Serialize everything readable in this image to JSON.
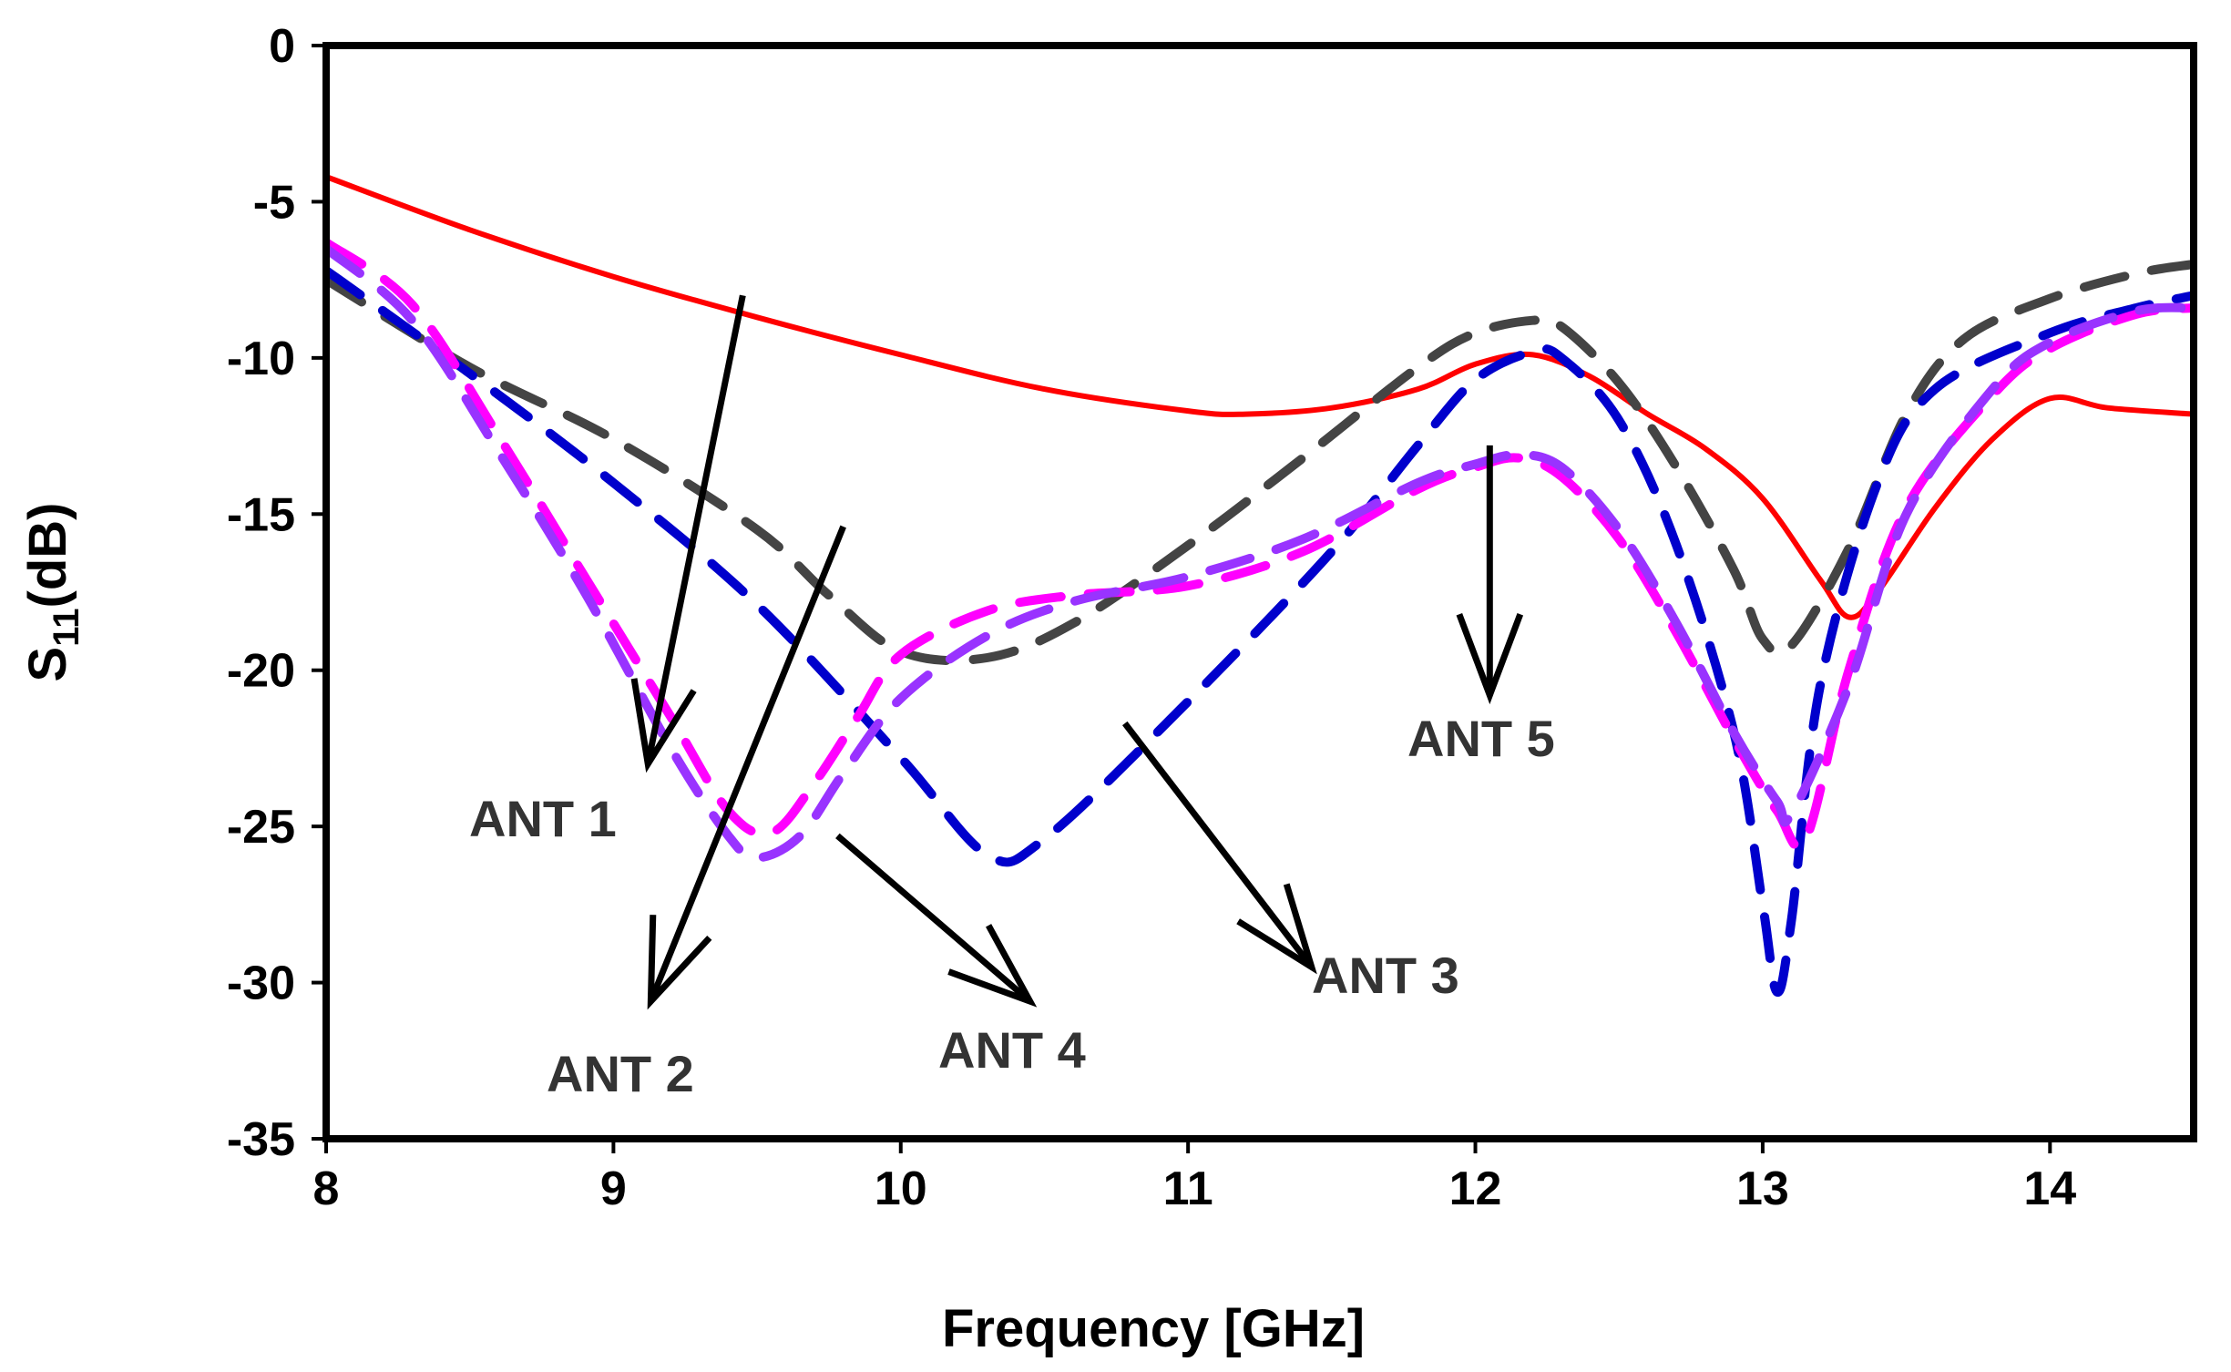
{
  "chart_data": {
    "type": "line",
    "title": "",
    "xlabel": "Frequency [GHz]",
    "ylabel": {
      "main": "S",
      "sub": "11",
      "unit": "(dB)"
    },
    "xlim": [
      8,
      14.5
    ],
    "ylim": [
      -35,
      0
    ],
    "xticks": [
      "8",
      "9",
      "10",
      "11",
      "12",
      "13",
      "14"
    ],
    "yticks": [
      "0",
      "-5",
      "-10",
      "-15",
      "-20",
      "-25",
      "-30",
      "-35"
    ],
    "grid": false,
    "legend": "none (annotated with arrows)",
    "series": [
      {
        "name": "ANT 1",
        "color": "#ff0000",
        "style": "solid",
        "x": [
          8.0,
          8.5,
          9.0,
          9.5,
          10.0,
          10.5,
          11.0,
          11.2,
          11.5,
          11.8,
          12.0,
          12.2,
          12.4,
          12.6,
          12.8,
          13.0,
          13.2,
          13.3,
          13.4,
          13.6,
          13.8,
          14.0,
          14.2,
          14.5
        ],
        "y": [
          -4.2,
          -5.9,
          -7.4,
          -8.7,
          -9.9,
          -11.0,
          -11.7,
          -11.8,
          -11.6,
          -11.0,
          -10.2,
          -9.9,
          -10.6,
          -11.8,
          -12.9,
          -14.5,
          -17.1,
          -18.3,
          -17.5,
          -14.8,
          -12.6,
          -11.3,
          -11.6,
          -11.8
        ]
      },
      {
        "name": "ANT 2",
        "color": "#444444",
        "style": "dash",
        "x": [
          8.0,
          8.5,
          9.0,
          9.5,
          9.75,
          10.0,
          10.3,
          10.6,
          11.0,
          11.4,
          11.8,
          12.0,
          12.2,
          12.3,
          12.5,
          12.7,
          12.9,
          13.0,
          13.1,
          13.3,
          13.5,
          13.7,
          14.0,
          14.3,
          14.5
        ],
        "y": [
          -7.5,
          -10.3,
          -12.6,
          -15.5,
          -17.6,
          -19.4,
          -19.6,
          -18.5,
          -16.0,
          -13.2,
          -10.3,
          -9.2,
          -8.8,
          -9.0,
          -10.8,
          -13.5,
          -16.8,
          -19.0,
          -19.2,
          -16.1,
          -11.8,
          -9.4,
          -8.1,
          -7.3,
          -7.0
        ]
      },
      {
        "name": "ANT 3",
        "color": "#0000cc",
        "style": "dash",
        "x": [
          8.0,
          8.5,
          9.0,
          9.5,
          10.0,
          10.3,
          10.5,
          11.0,
          11.5,
          11.8,
          12.0,
          12.2,
          12.3,
          12.5,
          12.7,
          12.9,
          13.0,
          13.05,
          13.1,
          13.2,
          13.4,
          13.6,
          14.0,
          14.3,
          14.5
        ],
        "y": [
          -7.2,
          -10.5,
          -14.0,
          -17.9,
          -22.8,
          -25.9,
          -25.4,
          -21.0,
          -16.2,
          -12.8,
          -10.7,
          -9.8,
          -10.0,
          -12.0,
          -16.0,
          -22.0,
          -27.5,
          -30.3,
          -28.0,
          -20.5,
          -14.0,
          -11.0,
          -9.2,
          -8.4,
          -8.0
        ]
      },
      {
        "name": "ANT 4",
        "color": "#ff00ff",
        "style": "dash",
        "x": [
          8.0,
          8.3,
          8.6,
          8.9,
          9.2,
          9.4,
          9.55,
          9.7,
          9.85,
          10.0,
          10.3,
          10.6,
          11.0,
          11.4,
          11.8,
          12.0,
          12.15,
          12.3,
          12.5,
          12.7,
          12.9,
          13.05,
          13.15,
          13.3,
          13.5,
          13.8,
          14.0,
          14.3,
          14.5
        ],
        "y": [
          -6.3,
          -8.3,
          -12.5,
          -17.0,
          -21.5,
          -24.5,
          -25.2,
          -23.6,
          -21.5,
          -19.5,
          -18.1,
          -17.6,
          -17.3,
          -16.2,
          -14.2,
          -13.5,
          -13.2,
          -13.8,
          -15.8,
          -18.8,
          -22.2,
          -24.5,
          -25.4,
          -20.0,
          -14.8,
          -11.2,
          -9.7,
          -8.6,
          -8.4
        ]
      },
      {
        "name": "ANT 5",
        "color": "#9933ff",
        "style": "dash",
        "x": [
          8.0,
          8.3,
          8.6,
          8.9,
          9.2,
          9.4,
          9.5,
          9.65,
          9.8,
          10.0,
          10.3,
          10.6,
          11.0,
          11.4,
          11.8,
          12.0,
          12.15,
          12.3,
          12.5,
          12.7,
          12.9,
          13.05,
          13.1,
          13.3,
          13.5,
          13.8,
          14.0,
          14.3,
          14.5
        ],
        "y": [
          -6.5,
          -8.8,
          -13.0,
          -17.5,
          -22.5,
          -25.3,
          -26.0,
          -25.3,
          -23.3,
          -20.9,
          -18.9,
          -17.8,
          -17.0,
          -15.8,
          -14.0,
          -13.4,
          -13.1,
          -13.5,
          -15.5,
          -18.5,
          -22.0,
          -24.2,
          -24.6,
          -20.5,
          -15.0,
          -11.0,
          -9.5,
          -8.5,
          -8.4
        ]
      }
    ],
    "annotations": [
      {
        "text": "ANT 1",
        "arrow_from": [
          9.45,
          -8.0
        ],
        "arrow_to": [
          9.12,
          -23.0
        ]
      },
      {
        "text": "ANT 2",
        "arrow_from": [
          9.8,
          -15.4
        ],
        "arrow_to": [
          9.13,
          -30.6
        ]
      },
      {
        "text": "ANT 4",
        "arrow_from": [
          9.78,
          -25.3
        ],
        "arrow_to": [
          10.45,
          -30.6
        ]
      },
      {
        "text": "ANT 3",
        "arrow_from": [
          10.78,
          -21.7
        ],
        "arrow_to": [
          11.43,
          -29.5
        ]
      },
      {
        "text": "ANT 5",
        "arrow_from": [
          12.05,
          -12.8
        ],
        "arrow_to": [
          12.05,
          -20.8
        ]
      }
    ]
  }
}
